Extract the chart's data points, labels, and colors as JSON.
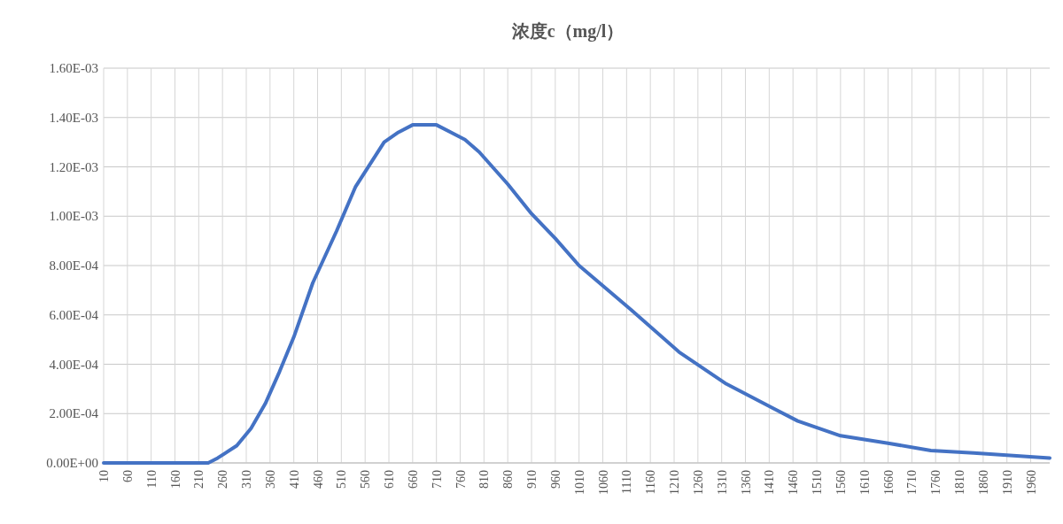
{
  "chart_data": {
    "type": "line",
    "title": "浓度c（mg/l）",
    "x": [
      10,
      210,
      230,
      250,
      290,
      320,
      350,
      380,
      410,
      450,
      500,
      540,
      580,
      600,
      630,
      660,
      710,
      770,
      800,
      860,
      910,
      960,
      1010,
      1120,
      1220,
      1320,
      1420,
      1470,
      1560,
      1660,
      1750,
      1840,
      2000
    ],
    "series": [
      {
        "color": "#4472c4",
        "values": [
          0,
          0,
          0,
          2e-05,
          7e-05,
          0.00014,
          0.00024,
          0.00037,
          0.00051,
          0.00073,
          0.00094,
          0.00112,
          0.00124,
          0.0013,
          0.00134,
          0.00137,
          0.00137,
          0.00131,
          0.00126,
          0.00113,
          0.00101,
          0.00091,
          0.0008,
          0.00062,
          0.00045,
          0.00032,
          0.00022,
          0.00017,
          0.00011,
          8e-05,
          5e-05,
          4e-05,
          2e-05
        ]
      }
    ],
    "xlim": [
      10,
      2000
    ],
    "xticks": [
      10,
      60,
      110,
      160,
      210,
      260,
      310,
      360,
      410,
      460,
      510,
      560,
      610,
      660,
      710,
      760,
      810,
      860,
      910,
      960,
      1010,
      1060,
      1110,
      1160,
      1210,
      1260,
      1310,
      1360,
      1410,
      1460,
      1510,
      1560,
      1610,
      1660,
      1710,
      1760,
      1810,
      1860,
      1910,
      1960
    ],
    "ylim": [
      0,
      0.0016
    ],
    "yticks": [
      {
        "value": 0,
        "label": "0.00E+00"
      },
      {
        "value": 0.0002,
        "label": "2.00E-04"
      },
      {
        "value": 0.0004,
        "label": "4.00E-04"
      },
      {
        "value": 0.0006,
        "label": "6.00E-04"
      },
      {
        "value": 0.0008,
        "label": "8.00E-04"
      },
      {
        "value": 0.001,
        "label": "1.00E-03"
      },
      {
        "value": 0.0012,
        "label": "1.20E-03"
      },
      {
        "value": 0.0014,
        "label": "1.40E-03"
      },
      {
        "value": 0.0016,
        "label": "1.60E-03"
      }
    ],
    "grid": true,
    "marker": "none",
    "line_style": "solid"
  }
}
